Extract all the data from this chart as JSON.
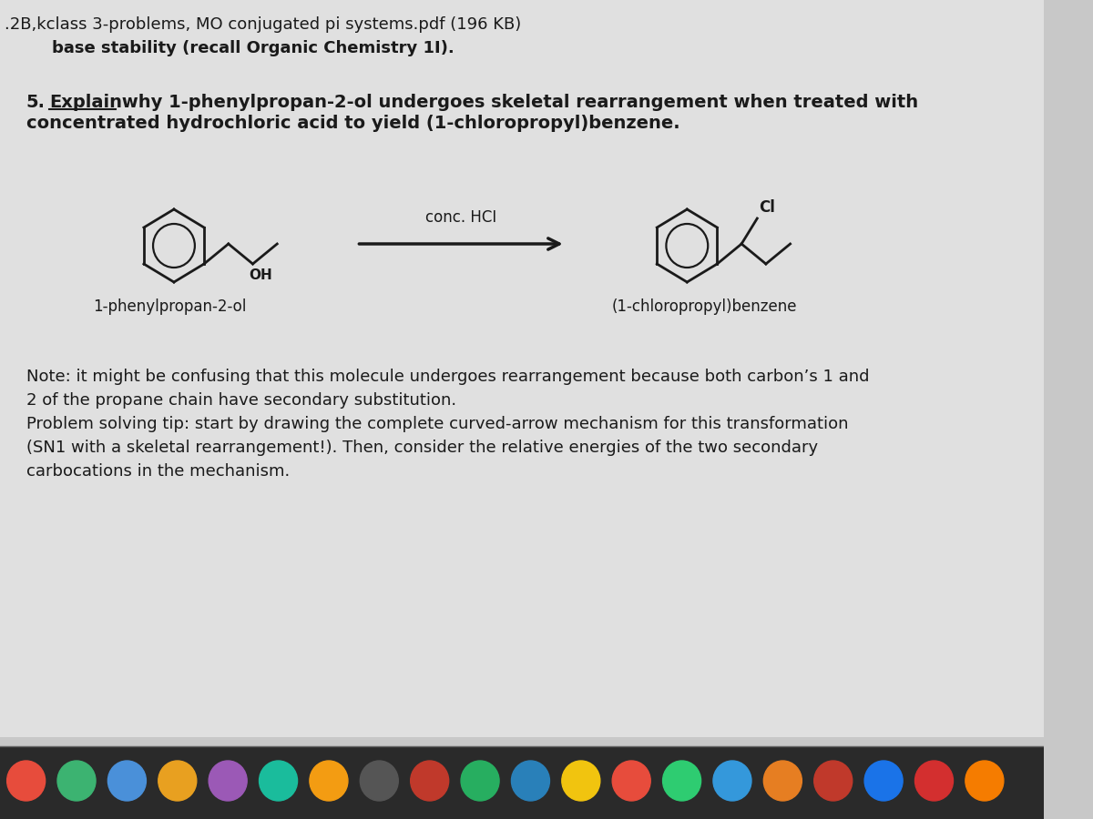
{
  "bg_color": "#c8c8c8",
  "content_bg": "#e0e0e0",
  "header_line1": ".2B,kclass 3-problems, MO conjugated pi systems.pdf (196 KB)",
  "header_line2": "base stability (recall Organic Chemistry 1I).",
  "reagent_label": "conc. HCI",
  "reactant_label": "1-phenylpropan-2-ol",
  "product_label": "(1-chloropropyl)benzene",
  "note_line1": "Note: it might be confusing that this molecule undergoes rearrangement because both carbon’s 1 and",
  "note_line2": "2 of the propane chain have secondary substitution.",
  "note_line3": "Problem solving tip: start by drawing the complete curved-arrow mechanism for this transformation",
  "note_line4": "(Sₙ₁ with a skeletal rearrangement!). Then, consider the relative energies of the two secondary",
  "note_line5": "carbocations in the mechanism.",
  "dock_bg": "#2a2a2a",
  "text_color": "#1a1a1a",
  "header_color": "#1a1a1a"
}
